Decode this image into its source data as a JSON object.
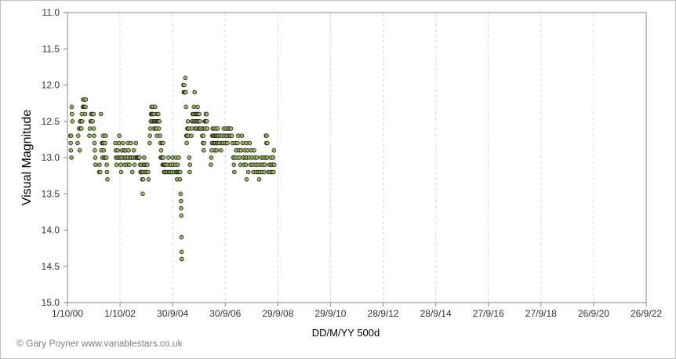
{
  "copyright": "© Gary Poyner  www.variablestars.co.uk",
  "chart_data": {
    "type": "scatter",
    "xlabel": "DD/M/YY  500d",
    "ylabel": "Visual Magnitude",
    "y_inverted": true,
    "ylim": [
      11.0,
      15.0
    ],
    "y_ticks": [
      "11.0",
      "11.5",
      "12.0",
      "12.5",
      "13.0",
      "13.5",
      "14.0",
      "14.5",
      "15.0"
    ],
    "x_ticks": [
      "1/10/00",
      "1/10/02",
      "30/9/04",
      "30/9/06",
      "29/9/08",
      "29/9/10",
      "28/9/12",
      "28/9/14",
      "27/9/16",
      "27/9/18",
      "26/9/20",
      "26/9/22"
    ],
    "grid": "vertical dashed at x ticks",
    "marker_color": "#9bbb59",
    "marker_edge": "#1f1f1f",
    "x_unit": "days after 1/10/00",
    "points": [
      [
        40,
        12.7
      ],
      [
        45,
        12.8
      ],
      [
        48,
        12.9
      ],
      [
        52,
        12.7
      ],
      [
        55,
        13.0
      ],
      [
        60,
        12.3
      ],
      [
        63,
        12.4
      ],
      [
        68,
        12.5
      ],
      [
        140,
        12.8
      ],
      [
        150,
        12.7
      ],
      [
        160,
        12.6
      ],
      [
        170,
        12.9
      ],
      [
        175,
        12.5
      ],
      [
        185,
        12.6
      ],
      [
        190,
        12.5
      ],
      [
        195,
        12.6
      ],
      [
        200,
        12.4
      ],
      [
        205,
        12.5
      ],
      [
        215,
        12.3
      ],
      [
        220,
        12.2
      ],
      [
        225,
        12.3
      ],
      [
        230,
        12.2
      ],
      [
        240,
        12.3
      ],
      [
        245,
        12.4
      ],
      [
        250,
        12.3
      ],
      [
        255,
        12.2
      ],
      [
        305,
        12.7
      ],
      [
        310,
        12.6
      ],
      [
        320,
        12.5
      ],
      [
        330,
        12.4
      ],
      [
        335,
        12.5
      ],
      [
        345,
        12.4
      ],
      [
        350,
        12.5
      ],
      [
        360,
        12.4
      ],
      [
        365,
        12.6
      ],
      [
        370,
        12.7
      ],
      [
        375,
        12.8
      ],
      [
        380,
        12.9
      ],
      [
        385,
        13.0
      ],
      [
        390,
        13.1
      ],
      [
        440,
        13.2
      ],
      [
        445,
        13.1
      ],
      [
        455,
        13.2
      ],
      [
        465,
        12.4
      ],
      [
        470,
        12.9
      ],
      [
        480,
        12.8
      ],
      [
        485,
        13.0
      ],
      [
        490,
        12.8
      ],
      [
        495,
        12.7
      ],
      [
        500,
        12.8
      ],
      [
        505,
        12.9
      ],
      [
        510,
        13.0
      ],
      [
        520,
        12.8
      ],
      [
        525,
        13.0
      ],
      [
        530,
        12.7
      ],
      [
        540,
        13.0
      ],
      [
        545,
        13.1
      ],
      [
        550,
        13.2
      ],
      [
        555,
        13.3
      ],
      [
        665,
        12.8
      ],
      [
        670,
        12.9
      ],
      [
        675,
        13.0
      ],
      [
        680,
        13.1
      ],
      [
        690,
        13.0
      ],
      [
        700,
        12.9
      ],
      [
        710,
        13.0
      ],
      [
        715,
        12.8
      ],
      [
        720,
        12.7
      ],
      [
        730,
        13.0
      ],
      [
        740,
        13.1
      ],
      [
        745,
        13.2
      ],
      [
        750,
        13.0
      ],
      [
        760,
        12.9
      ],
      [
        770,
        12.8
      ],
      [
        780,
        13.0
      ],
      [
        790,
        12.9
      ],
      [
        795,
        13.1
      ],
      [
        800,
        13.0
      ],
      [
        810,
        12.9
      ],
      [
        820,
        13.0
      ],
      [
        830,
        13.1
      ],
      [
        840,
        12.8
      ],
      [
        845,
        13.0
      ],
      [
        850,
        12.9
      ],
      [
        860,
        13.1
      ],
      [
        870,
        13.0
      ],
      [
        880,
        12.8
      ],
      [
        890,
        13.0
      ],
      [
        900,
        13.2
      ],
      [
        910,
        13.0
      ],
      [
        920,
        12.9
      ],
      [
        930,
        13.1
      ],
      [
        940,
        13.0
      ],
      [
        950,
        12.8
      ],
      [
        960,
        13.0
      ],
      [
        970,
        13.0
      ],
      [
        980,
        13.0
      ],
      [
        990,
        13.0
      ],
      [
        1000,
        13.0
      ],
      [
        1010,
        13.1
      ],
      [
        1015,
        13.2
      ],
      [
        1020,
        13.2
      ],
      [
        1025,
        13.1
      ],
      [
        1030,
        13.2
      ],
      [
        1035,
        13.2
      ],
      [
        1040,
        13.3
      ],
      [
        1045,
        13.5
      ],
      [
        1050,
        13.3
      ],
      [
        1055,
        13.2
      ],
      [
        1060,
        13.1
      ],
      [
        1065,
        13.0
      ],
      [
        1070,
        13.1
      ],
      [
        1080,
        13.2
      ],
      [
        1090,
        13.1
      ],
      [
        1100,
        13.2
      ],
      [
        1110,
        13.1
      ],
      [
        1120,
        13.2
      ],
      [
        1125,
        13.3
      ],
      [
        1140,
        12.8
      ],
      [
        1145,
        12.7
      ],
      [
        1150,
        12.6
      ],
      [
        1155,
        12.5
      ],
      [
        1160,
        12.4
      ],
      [
        1165,
        12.3
      ],
      [
        1170,
        12.4
      ],
      [
        1175,
        12.5
      ],
      [
        1180,
        12.4
      ],
      [
        1185,
        12.3
      ],
      [
        1190,
        12.4
      ],
      [
        1195,
        12.5
      ],
      [
        1200,
        12.6
      ],
      [
        1205,
        12.5
      ],
      [
        1210,
        12.4
      ],
      [
        1215,
        12.3
      ],
      [
        1220,
        12.5
      ],
      [
        1225,
        12.6
      ],
      [
        1230,
        12.5
      ],
      [
        1235,
        12.6
      ],
      [
        1240,
        12.7
      ],
      [
        1245,
        12.5
      ],
      [
        1250,
        12.4
      ],
      [
        1255,
        12.5
      ],
      [
        1260,
        12.4
      ],
      [
        1265,
        12.5
      ],
      [
        1270,
        12.6
      ],
      [
        1275,
        12.5
      ],
      [
        1285,
        12.7
      ],
      [
        1290,
        12.8
      ],
      [
        1295,
        13.0
      ],
      [
        1300,
        12.9
      ],
      [
        1305,
        13.0
      ],
      [
        1310,
        12.8
      ],
      [
        1315,
        13.0
      ],
      [
        1320,
        13.1
      ],
      [
        1325,
        12.8
      ],
      [
        1330,
        13.0
      ],
      [
        1335,
        13.1
      ],
      [
        1340,
        13.2
      ],
      [
        1345,
        13.1
      ],
      [
        1350,
        13.2
      ],
      [
        1360,
        13.1
      ],
      [
        1370,
        13.2
      ],
      [
        1380,
        13.1
      ],
      [
        1390,
        13.2
      ],
      [
        1400,
        13.0
      ],
      [
        1410,
        13.2
      ],
      [
        1420,
        13.1
      ],
      [
        1430,
        13.2
      ],
      [
        1440,
        13.1
      ],
      [
        1450,
        13.2
      ],
      [
        1460,
        13.0
      ],
      [
        1470,
        13.1
      ],
      [
        1480,
        13.2
      ],
      [
        1500,
        13.1
      ],
      [
        1505,
        13.0
      ],
      [
        1510,
        13.2
      ],
      [
        1520,
        13.3
      ],
      [
        1525,
        13.2
      ],
      [
        1530,
        13.1
      ],
      [
        1540,
        13.2
      ],
      [
        1545,
        13.0
      ],
      [
        1550,
        13.2
      ],
      [
        1560,
        13.3
      ],
      [
        1565,
        13.2
      ],
      [
        1570,
        13.5
      ],
      [
        1575,
        13.6
      ],
      [
        1578,
        13.7
      ],
      [
        1580,
        13.8
      ],
      [
        1582,
        14.1
      ],
      [
        1584,
        14.3
      ],
      [
        1586,
        14.4
      ],
      [
        1588,
        14.4
      ],
      [
        1610,
        12.0
      ],
      [
        1615,
        12.1
      ],
      [
        1620,
        12.0
      ],
      [
        1625,
        12.1
      ],
      [
        1630,
        12.1
      ],
      [
        1635,
        11.9
      ],
      [
        1640,
        12.1
      ],
      [
        1645,
        12.3
      ],
      [
        1650,
        12.7
      ],
      [
        1655,
        12.8
      ],
      [
        1660,
        12.7
      ],
      [
        1665,
        12.6
      ],
      [
        1670,
        12.5
      ],
      [
        1675,
        12.6
      ],
      [
        1680,
        12.7
      ],
      [
        1685,
        12.6
      ],
      [
        1690,
        13.0
      ],
      [
        1695,
        13.2
      ],
      [
        1700,
        13.1
      ],
      [
        1720,
        12.7
      ],
      [
        1725,
        12.6
      ],
      [
        1730,
        12.5
      ],
      [
        1735,
        12.4
      ],
      [
        1740,
        12.5
      ],
      [
        1750,
        12.4
      ],
      [
        1755,
        12.3
      ],
      [
        1760,
        12.5
      ],
      [
        1765,
        12.1
      ],
      [
        1770,
        12.4
      ],
      [
        1775,
        12.6
      ],
      [
        1780,
        12.5
      ],
      [
        1785,
        12.4
      ],
      [
        1790,
        12.6
      ],
      [
        1795,
        12.5
      ],
      [
        1800,
        12.4
      ],
      [
        1805,
        12.3
      ],
      [
        1810,
        12.5
      ],
      [
        1815,
        12.4
      ],
      [
        1820,
        12.6
      ],
      [
        1825,
        12.5
      ],
      [
        1830,
        12.4
      ],
      [
        1835,
        12.6
      ],
      [
        1840,
        12.5
      ],
      [
        1850,
        12.6
      ],
      [
        1870,
        12.7
      ],
      [
        1875,
        12.6
      ],
      [
        1880,
        12.8
      ],
      [
        1885,
        12.7
      ],
      [
        1890,
        12.9
      ],
      [
        1895,
        12.8
      ],
      [
        1900,
        12.6
      ],
      [
        1905,
        12.5
      ],
      [
        1910,
        12.6
      ],
      [
        1915,
        12.5
      ],
      [
        1920,
        12.4
      ],
      [
        1925,
        12.5
      ],
      [
        1930,
        12.4
      ],
      [
        1935,
        12.5
      ],
      [
        1940,
        12.6
      ],
      [
        1990,
        13.1
      ],
      [
        1995,
        13.0
      ],
      [
        2000,
        12.9
      ],
      [
        2005,
        12.8
      ],
      [
        2010,
        12.7
      ],
      [
        2015,
        12.6
      ],
      [
        2020,
        12.7
      ],
      [
        2025,
        12.8
      ],
      [
        2030,
        12.6
      ],
      [
        2035,
        12.7
      ],
      [
        2040,
        12.8
      ],
      [
        2045,
        12.9
      ],
      [
        2050,
        12.7
      ],
      [
        2055,
        12.8
      ],
      [
        2060,
        12.6
      ],
      [
        2065,
        12.7
      ],
      [
        2070,
        12.9
      ],
      [
        2075,
        12.8
      ],
      [
        2080,
        12.7
      ],
      [
        2085,
        12.6
      ],
      [
        2090,
        12.8
      ],
      [
        2095,
        12.7
      ],
      [
        2110,
        12.8
      ],
      [
        2120,
        12.7
      ],
      [
        2130,
        12.9
      ],
      [
        2140,
        12.8
      ],
      [
        2150,
        12.7
      ],
      [
        2160,
        12.8
      ],
      [
        2170,
        12.6
      ],
      [
        2180,
        12.7
      ],
      [
        2190,
        12.8
      ],
      [
        2200,
        12.6
      ],
      [
        2210,
        12.7
      ],
      [
        2220,
        12.8
      ],
      [
        2230,
        12.6
      ],
      [
        2240,
        12.7
      ],
      [
        2250,
        12.6
      ],
      [
        2260,
        12.7
      ],
      [
        2270,
        12.6
      ],
      [
        2280,
        12.7
      ],
      [
        2290,
        12.8
      ],
      [
        2300,
        13.0
      ],
      [
        2310,
        13.1
      ],
      [
        2315,
        13.2
      ],
      [
        2320,
        13.0
      ],
      [
        2330,
        12.8
      ],
      [
        2340,
        12.9
      ],
      [
        2350,
        13.0
      ],
      [
        2360,
        12.8
      ],
      [
        2370,
        12.7
      ],
      [
        2380,
        12.9
      ],
      [
        2390,
        13.0
      ],
      [
        2400,
        13.1
      ],
      [
        2410,
        12.9
      ],
      [
        2420,
        12.7
      ],
      [
        2430,
        12.8
      ],
      [
        2440,
        13.0
      ],
      [
        2450,
        13.1
      ],
      [
        2460,
        12.9
      ],
      [
        2470,
        13.0
      ],
      [
        2475,
        13.1
      ],
      [
        2480,
        12.8
      ],
      [
        2485,
        13.3
      ],
      [
        2490,
        13.0
      ],
      [
        2500,
        12.9
      ],
      [
        2510,
        13.2
      ],
      [
        2520,
        13.0
      ],
      [
        2530,
        12.8
      ],
      [
        2540,
        13.1
      ],
      [
        2550,
        12.9
      ],
      [
        2560,
        13.0
      ],
      [
        2570,
        13.1
      ],
      [
        2580,
        13.2
      ],
      [
        2590,
        12.9
      ],
      [
        2600,
        13.0
      ],
      [
        2610,
        13.1
      ],
      [
        2620,
        13.2
      ],
      [
        2630,
        13.0
      ],
      [
        2640,
        13.1
      ],
      [
        2650,
        13.2
      ],
      [
        2660,
        13.3
      ],
      [
        2670,
        13.2
      ],
      [
        2680,
        13.1
      ],
      [
        2690,
        13.0
      ],
      [
        2700,
        13.2
      ],
      [
        2710,
        13.1
      ],
      [
        2720,
        13.0
      ],
      [
        2730,
        13.2
      ],
      [
        2740,
        13.1
      ],
      [
        2750,
        13.0
      ],
      [
        2755,
        12.7
      ],
      [
        2760,
        12.8
      ],
      [
        2765,
        12.7
      ],
      [
        2770,
        13.0
      ],
      [
        2775,
        12.8
      ],
      [
        2790,
        13.2
      ],
      [
        2800,
        13.1
      ],
      [
        2810,
        13.2
      ],
      [
        2820,
        13.0
      ],
      [
        2830,
        13.1
      ],
      [
        2840,
        13.2
      ],
      [
        2850,
        13.1
      ],
      [
        2855,
        13.0
      ],
      [
        2860,
        13.2
      ],
      [
        2865,
        12.9
      ],
      [
        2870,
        13.1
      ]
    ]
  }
}
